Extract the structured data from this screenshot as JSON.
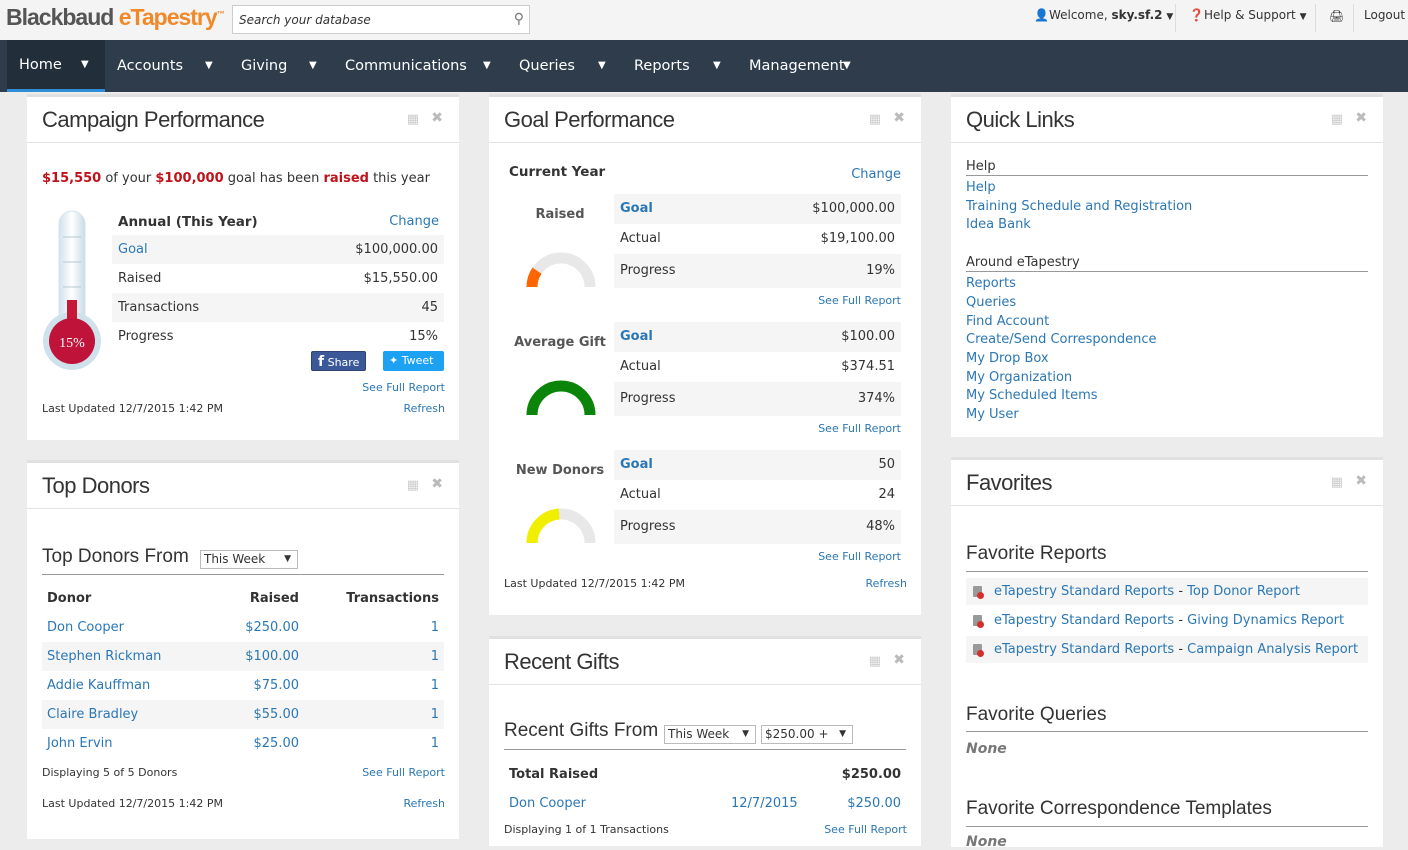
{
  "header": {
    "logo_main": "Blackbaud",
    "logo_brand": "eTapestry",
    "logo_tm": "™",
    "search_placeholder": "Search your database",
    "welcome_prefix": "Welcome, ",
    "username": "sky.sf.2",
    "help": "Help & Support",
    "logout": "Logout"
  },
  "nav": [
    {
      "label": "Home",
      "active": true
    },
    {
      "label": "Accounts"
    },
    {
      "label": "Giving"
    },
    {
      "label": "Communications"
    },
    {
      "label": "Queries"
    },
    {
      "label": "Reports"
    },
    {
      "label": "Management"
    }
  ],
  "campaign": {
    "title": "Campaign Performance",
    "raised_amt": "$15,550",
    "of_your": " of your ",
    "goal_amt": "$100,000",
    "goal_has_been": " goal has been ",
    "raised_word": "raised",
    "this_year": " this year",
    "period": "Annual (This Year)",
    "change": "Change",
    "rows": [
      {
        "label": "Goal",
        "value": "$100,000.00"
      },
      {
        "label": "Raised",
        "value": "$15,550.00"
      },
      {
        "label": "Transactions",
        "value": "45"
      },
      {
        "label": "Progress",
        "value": "15%"
      }
    ],
    "progress_pct": 15,
    "thermo_label": "15%",
    "share": "Share",
    "tweet": "Tweet",
    "see_full": "See Full Report",
    "last_updated": "Last Updated 12/7/2015 1:42 PM",
    "refresh": "Refresh"
  },
  "top_donors": {
    "title": "Top Donors",
    "from_label": "Top Donors From",
    "period": "This Week",
    "columns": [
      "Donor",
      "Raised",
      "Transactions"
    ],
    "rows": [
      [
        "Don Cooper",
        "$250.00",
        "1"
      ],
      [
        "Stephen Rickman",
        "$100.00",
        "1"
      ],
      [
        "Addie Kauffman",
        "$75.00",
        "1"
      ],
      [
        "Claire Bradley",
        "$55.00",
        "1"
      ],
      [
        "John Ervin",
        "$25.00",
        "1"
      ]
    ],
    "displaying": "Displaying 5 of 5 Donors",
    "see_full": "See Full Report",
    "last_updated": "Last Updated 12/7/2015 1:42 PM",
    "refresh": "Refresh"
  },
  "goal": {
    "title": "Goal Performance",
    "period": "Current Year",
    "change": "Change",
    "see_full": "See Full Report",
    "last_updated": "Last Updated 12/7/2015 1:42 PM",
    "refresh": "Refresh",
    "metrics": [
      {
        "name": "Raised",
        "goal": "$100,000.00",
        "actual": "$19,100.00",
        "progress": "19%",
        "pct": 19,
        "color": "#ff6600"
      },
      {
        "name": "Average Gift",
        "goal": "$100.00",
        "actual": "$374.51",
        "progress": "374%",
        "pct": 374,
        "color": "#0a850a"
      },
      {
        "name": "New Donors",
        "goal": "50",
        "actual": "24",
        "progress": "48%",
        "pct": 48,
        "color": "#f2ee00"
      }
    ],
    "labels": {
      "goal": "Goal",
      "actual": "Actual",
      "progress": "Progress"
    }
  },
  "recent": {
    "title": "Recent Gifts",
    "from_label": "Recent Gifts From",
    "period": "This Week",
    "amount": "$250.00 +",
    "total_label": "Total Raised",
    "total": "$250.00",
    "rows": [
      [
        "Don Cooper",
        "12/7/2015",
        "$250.00"
      ]
    ],
    "displaying": "Displaying 1 of 1 Transactions",
    "see_full": "See Full Report"
  },
  "quick": {
    "title": "Quick Links",
    "sections": [
      {
        "heading": "Help",
        "links": [
          "Help",
          "Training Schedule and Registration",
          "Idea Bank"
        ]
      },
      {
        "heading": "Around eTapestry",
        "links": [
          "Reports",
          "Queries",
          "Find Account",
          "Create/Send Correspondence",
          "My Drop Box",
          "My Organization",
          "My Scheduled Items",
          "My User"
        ]
      }
    ]
  },
  "favorites": {
    "title": "Favorites",
    "reports_heading": "Favorite Reports",
    "reports": [
      {
        "cat": "eTapestry Standard Reports",
        "sep": " - ",
        "name": "Top Donor Report"
      },
      {
        "cat": "eTapestry Standard Reports",
        "sep": " - ",
        "name": "Giving Dynamics Report"
      },
      {
        "cat": "eTapestry Standard Reports",
        "sep": " - ",
        "name": "Campaign Analysis Report"
      }
    ],
    "queries_heading": "Favorite Queries",
    "queries_none": "None",
    "templates_heading": "Favorite Correspondence Templates",
    "templates_none": "None"
  }
}
